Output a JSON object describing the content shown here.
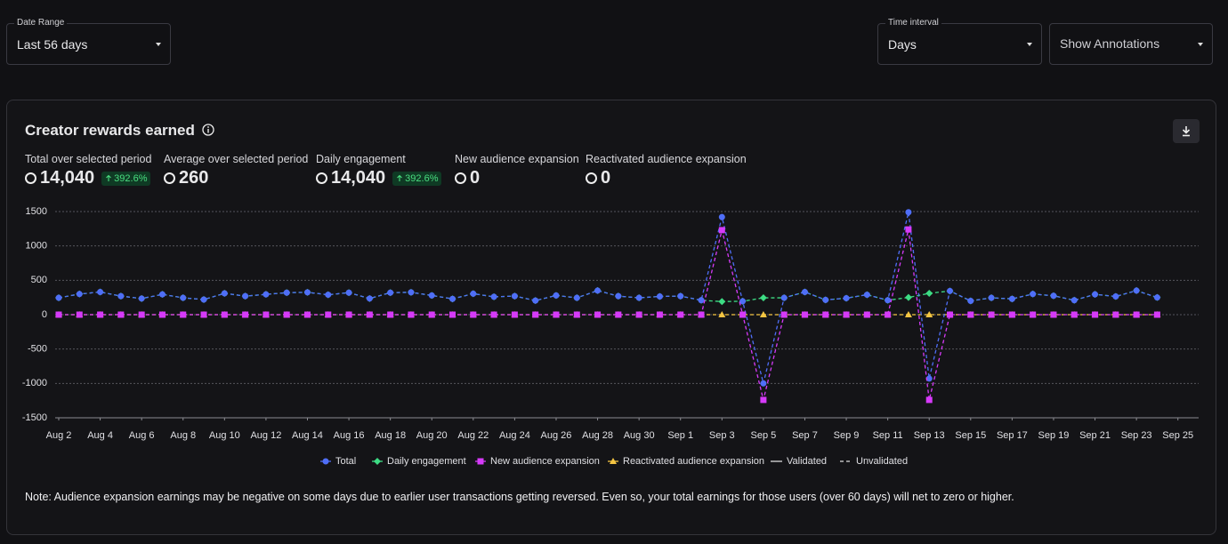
{
  "controls": {
    "date_range": {
      "label": "Date Range",
      "value": "Last 56 days"
    },
    "time_interval": {
      "label": "Time interval",
      "value": "Days"
    },
    "annotations": {
      "value": "Show Annotations"
    }
  },
  "card": {
    "title": "Creator rewards earned",
    "stats": [
      {
        "label": "Total over selected period",
        "value": "14,040",
        "change": "392.6%"
      },
      {
        "label": "Average over selected period",
        "value": "260"
      },
      {
        "label": "Daily engagement",
        "value": "14,040",
        "change": "392.6%"
      },
      {
        "label": "New audience expansion",
        "value": "0"
      },
      {
        "label": "Reactivated audience expansion",
        "value": "0"
      }
    ],
    "note": "Note: Audience expansion earnings may be negative on some days due to earlier user transactions getting reversed. Even so, your total earnings for those users (over 60 days) will net to zero or higher."
  },
  "chart_data": {
    "type": "line",
    "xlim": [
      0,
      55
    ],
    "xticks": [
      {
        "value": 0,
        "label": "Aug 2"
      },
      {
        "value": 2,
        "label": "Aug 4"
      },
      {
        "value": 4,
        "label": "Aug 6"
      },
      {
        "value": 6,
        "label": "Aug 8"
      },
      {
        "value": 8,
        "label": "Aug 10"
      },
      {
        "value": 10,
        "label": "Aug 12"
      },
      {
        "value": 12,
        "label": "Aug 14"
      },
      {
        "value": 14,
        "label": "Aug 16"
      },
      {
        "value": 16,
        "label": "Aug 18"
      },
      {
        "value": 18,
        "label": "Aug 20"
      },
      {
        "value": 20,
        "label": "Aug 22"
      },
      {
        "value": 22,
        "label": "Aug 24"
      },
      {
        "value": 24,
        "label": "Aug 26"
      },
      {
        "value": 26,
        "label": "Aug 28"
      },
      {
        "value": 28,
        "label": "Aug 30"
      },
      {
        "value": 30,
        "label": "Sep 1"
      },
      {
        "value": 32,
        "label": "Sep 3"
      },
      {
        "value": 34,
        "label": "Sep 5"
      },
      {
        "value": 36,
        "label": "Sep 7"
      },
      {
        "value": 38,
        "label": "Sep 9"
      },
      {
        "value": 40,
        "label": "Sep 11"
      },
      {
        "value": 42,
        "label": "Sep 13"
      },
      {
        "value": 44,
        "label": "Sep 15"
      },
      {
        "value": 46,
        "label": "Sep 17"
      },
      {
        "value": 48,
        "label": "Sep 19"
      },
      {
        "value": 50,
        "label": "Sep 21"
      },
      {
        "value": 52,
        "label": "Sep 23"
      },
      {
        "value": 54,
        "label": "Sep 25"
      }
    ],
    "ylim": [
      -1500,
      1500
    ],
    "yticks": [
      -1500,
      -1000,
      -500,
      0,
      500,
      1000,
      1500
    ],
    "grid": true,
    "series": [
      {
        "name": "Total",
        "color": "#4f6ef7",
        "marker": "circle",
        "values": [
          245,
          300,
          330,
          270,
          235,
          295,
          245,
          220,
          310,
          270,
          295,
          320,
          325,
          290,
          320,
          235,
          320,
          325,
          280,
          230,
          305,
          260,
          270,
          205,
          280,
          245,
          350,
          270,
          245,
          265,
          270,
          210,
          1420,
          195,
          -1000,
          245,
          330,
          215,
          240,
          290,
          210,
          1490,
          -930,
          345,
          200,
          245,
          230,
          300,
          275,
          210,
          295,
          265,
          350,
          250
        ]
      },
      {
        "name": "Daily engagement",
        "color": "#3ddc84",
        "marker": "diamond",
        "values": [
          245,
          300,
          330,
          270,
          235,
          295,
          245,
          220,
          310,
          270,
          295,
          320,
          325,
          290,
          320,
          235,
          320,
          325,
          280,
          230,
          305,
          260,
          270,
          205,
          280,
          245,
          350,
          270,
          245,
          265,
          270,
          210,
          190,
          195,
          245,
          245,
          330,
          215,
          240,
          290,
          210,
          250,
          310,
          345,
          200,
          245,
          230,
          300,
          275,
          210,
          295,
          265,
          350,
          250
        ]
      },
      {
        "name": "New audience expansion",
        "color": "#d63af9",
        "marker": "square",
        "values": [
          0,
          0,
          0,
          0,
          0,
          0,
          0,
          0,
          0,
          0,
          0,
          0,
          0,
          0,
          0,
          0,
          0,
          0,
          0,
          0,
          0,
          0,
          0,
          0,
          0,
          0,
          0,
          0,
          0,
          0,
          0,
          0,
          1230,
          0,
          -1240,
          0,
          0,
          0,
          0,
          0,
          0,
          1240,
          -1240,
          0,
          0,
          0,
          0,
          0,
          0,
          0,
          0,
          0,
          0,
          0
        ]
      },
      {
        "name": "Reactivated audience expansion",
        "color": "#f5c542",
        "marker": "triangle",
        "values": [
          0,
          0,
          0,
          0,
          0,
          0,
          0,
          0,
          0,
          0,
          0,
          0,
          0,
          0,
          0,
          0,
          0,
          0,
          0,
          0,
          0,
          0,
          0,
          0,
          0,
          0,
          0,
          0,
          0,
          0,
          0,
          0,
          0,
          0,
          0,
          0,
          0,
          0,
          0,
          0,
          0,
          0,
          0,
          0,
          0,
          0,
          0,
          0,
          0,
          0,
          0,
          0,
          0,
          0
        ]
      }
    ],
    "line_styles": [
      "Validated",
      "Unvalidated"
    ]
  }
}
